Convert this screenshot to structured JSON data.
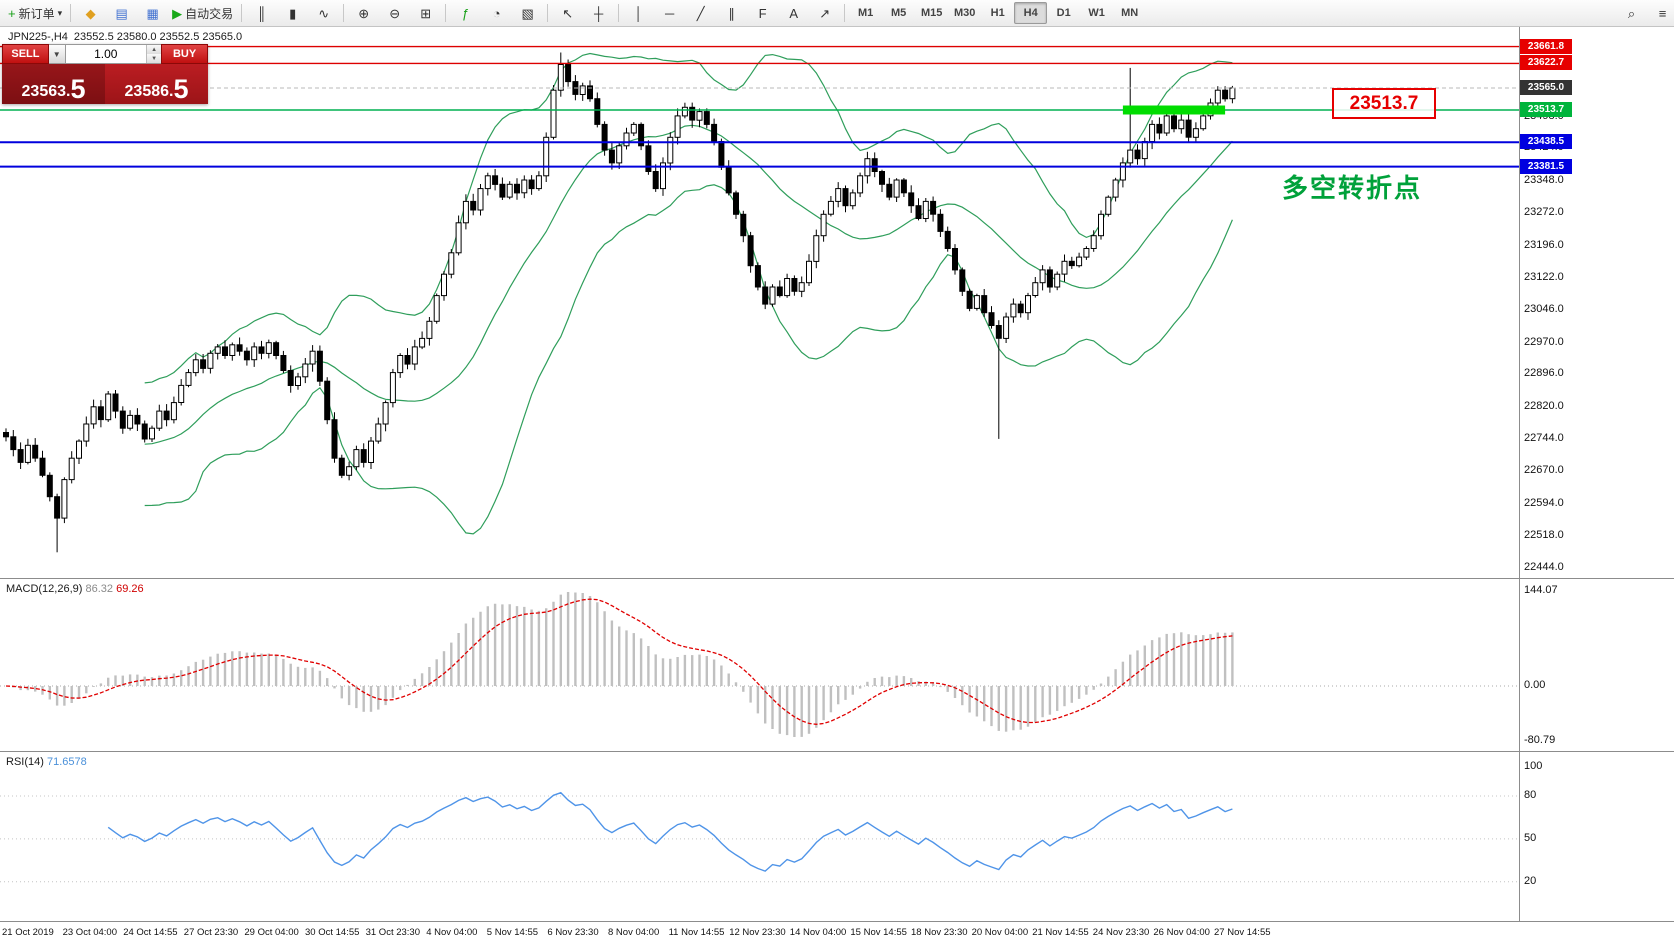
{
  "window": {
    "title": "JPN225-,H4"
  },
  "toolbar": {
    "groups": [
      {
        "items": [
          {
            "name": "new-order-button",
            "glyph": "+",
            "glyph_color": "#18a018",
            "label": "新订单",
            "caret": true
          }
        ]
      },
      {
        "items": [
          {
            "name": "favorites-icon",
            "glyph": "◆",
            "glyph_color": "#e0a020"
          },
          {
            "name": "market-depth-button",
            "glyph": "▤",
            "glyph_color": "#4070d0"
          },
          {
            "name": "data-window-button",
            "glyph": "▦",
            "glyph_color": "#4070d0"
          },
          {
            "name": "autotrading-button",
            "glyph": "▶",
            "glyph_color": "#18a818",
            "label": "自动交易"
          }
        ]
      },
      {
        "items": [
          {
            "name": "bars-chart-button",
            "glyph": "║"
          },
          {
            "name": "candles-chart-button",
            "glyph": "▮"
          },
          {
            "name": "line-chart-button",
            "glyph": "∿"
          }
        ]
      },
      {
        "items": [
          {
            "name": "zoom-in-button",
            "glyph": "⊕"
          },
          {
            "name": "zoom-out-button",
            "glyph": "⊖"
          },
          {
            "name": "tile-windows-button",
            "glyph": "⊞"
          }
        ]
      },
      {
        "items": [
          {
            "name": "indicators-button",
            "glyph": "ƒ",
            "glyph_color": "#18a018"
          },
          {
            "name": "periods-button",
            "glyph": "◔"
          },
          {
            "name": "templates-button",
            "glyph": "▧"
          }
        ]
      },
      {
        "items": [
          {
            "name": "cursor-button",
            "glyph": "↖"
          },
          {
            "name": "crosshair-button",
            "glyph": "┼"
          }
        ]
      },
      {
        "items": [
          {
            "name": "vertical-line-button",
            "glyph": "│"
          },
          {
            "name": "horizontal-line-button",
            "glyph": "─"
          },
          {
            "name": "trendline-button",
            "glyph": "╱"
          },
          {
            "name": "channel-button",
            "glyph": "∥"
          },
          {
            "name": "fibonacci-button",
            "glyph": "F"
          },
          {
            "name": "text-button",
            "glyph": "A"
          },
          {
            "name": "arrows-button",
            "glyph": "↗"
          }
        ]
      }
    ],
    "timeframes": {
      "items": [
        "M1",
        "M5",
        "M15",
        "M30",
        "H1",
        "H4",
        "D1",
        "W1",
        "MN"
      ],
      "active": "H4"
    },
    "right_items": [
      {
        "name": "search-button",
        "glyph": "⌕"
      },
      {
        "name": "properties-button",
        "glyph": "≡"
      }
    ]
  },
  "symbol_bar": {
    "symbol": "JPN225-,H4",
    "quote": "23552.5 23580.0 23552.5 23565.0"
  },
  "trade_panel": {
    "sell_label": "SELL",
    "buy_label": "BUY",
    "volume": "1.00",
    "sell_price": "23563.5",
    "buy_price": "23586.5"
  },
  "annotations": {
    "price_box": "23513.7",
    "note_text": "多空转折点",
    "note_color": "#00a13a"
  },
  "price_axis": {
    "labels": [
      "23650.0",
      "23498.0",
      "23424.0",
      "23348.0",
      "23272.0",
      "23196.0",
      "23122.0",
      "23046.0",
      "22970.0",
      "22896.0",
      "22820.0",
      "22744.0",
      "22670.0",
      "22594.0",
      "22518.0",
      "22444.0"
    ],
    "tags": [
      {
        "value": "23661.8",
        "color": "#e60000"
      },
      {
        "value": "23622.7",
        "color": "#e60000"
      },
      {
        "value": "23565.0",
        "color": "#333333"
      },
      {
        "value": "23513.7",
        "color": "#00b43c"
      },
      {
        "value": "23438.5",
        "color": "#0000e0"
      },
      {
        "value": "23381.5",
        "color": "#0000e0"
      }
    ]
  },
  "levels": [
    {
      "price": 23661.8,
      "color": "#dd0000",
      "width": 1.4,
      "name": "resistance-line-1"
    },
    {
      "price": 23622.7,
      "color": "#dd0000",
      "width": 1.4,
      "name": "resistance-line-2"
    },
    {
      "price": 23513.7,
      "color": "#00b050",
      "width": 1.4,
      "name": "pivot-line"
    },
    {
      "price": 23438.5,
      "color": "#0000dd",
      "width": 2,
      "name": "support-line-1"
    },
    {
      "price": 23381.5,
      "color": "#0000dd",
      "width": 2,
      "name": "support-line-2"
    }
  ],
  "bid_line": {
    "price": 23565.0,
    "color": "#b8b8b8"
  },
  "highlight_segment": {
    "price": 23513.7,
    "from_candle": 153,
    "to_candle": 167,
    "color": "#00dd00",
    "thickness": 9
  },
  "macd": {
    "label": "MACD(12,26,9)",
    "value_main": "86.32",
    "value_signal": "69.26",
    "axis": [
      "144.07",
      "0.00",
      "-80.79"
    ]
  },
  "rsi": {
    "label": "RSI(14)",
    "value": "71.6578",
    "axis": [
      "100",
      "80",
      "50",
      "20"
    ],
    "levels": [
      80,
      50,
      20
    ]
  },
  "time_axis": {
    "labels": [
      "21 Oct 2019",
      "23 Oct 04:00",
      "24 Oct 14:55",
      "27 Oct 23:30",
      "29 Oct 04:00",
      "30 Oct 14:55",
      "31 Oct 23:30",
      "4 Nov 04:00",
      "5 Nov 14:55",
      "6 Nov 23:30",
      "8 Nov 04:00",
      "11 Nov 14:55",
      "12 Nov 23:30",
      "14 Nov 04:00",
      "15 Nov 14:55",
      "18 Nov 23:30",
      "20 Nov 04:00",
      "21 Nov 14:55",
      "24 Nov 23:30",
      "26 Nov 04:00",
      "27 Nov 14:55"
    ]
  },
  "chart_data": {
    "type": "candlestick",
    "symbol": "JPN225-",
    "timeframe": "H4",
    "title": "JPN225-,H4",
    "ohlc_current": {
      "open": 23552.5,
      "high": 23580.0,
      "low": 23552.5,
      "close": 23565.0
    },
    "ylim": [
      22420,
      23710
    ],
    "visible_price_labels": [
      23661.8,
      22444.0
    ],
    "candles": {
      "first_open": 22760,
      "closes": [
        22750,
        22720,
        22690,
        22730,
        22700,
        22660,
        22610,
        22560,
        22650,
        22700,
        22740,
        22780,
        22820,
        22790,
        22850,
        22810,
        22770,
        22800,
        22780,
        22745,
        22770,
        22810,
        22790,
        22830,
        22870,
        22900,
        22930,
        22910,
        22945,
        22960,
        22940,
        22965,
        22950,
        22930,
        22960,
        22945,
        22970,
        22940,
        22905,
        22870,
        22890,
        22920,
        22950,
        22880,
        22790,
        22700,
        22660,
        22680,
        22720,
        22690,
        22740,
        22780,
        22830,
        22900,
        22940,
        22920,
        22960,
        22980,
        23020,
        23080,
        23130,
        23180,
        23250,
        23300,
        23280,
        23330,
        23360,
        23340,
        23310,
        23340,
        23320,
        23350,
        23330,
        23360,
        23450,
        23560,
        23620,
        23580,
        23550,
        23570,
        23540,
        23480,
        23420,
        23390,
        23430,
        23460,
        23480,
        23430,
        23370,
        23330,
        23390,
        23450,
        23500,
        23520,
        23490,
        23510,
        23480,
        23440,
        23380,
        23320,
        23270,
        23220,
        23150,
        23100,
        23060,
        23100,
        23080,
        23120,
        23090,
        23110,
        23160,
        23220,
        23270,
        23300,
        23330,
        23290,
        23320,
        23360,
        23400,
        23370,
        23340,
        23310,
        23350,
        23320,
        23290,
        23260,
        23300,
        23270,
        23230,
        23190,
        23140,
        23090,
        23050,
        23080,
        23040,
        23010,
        22980,
        23030,
        23060,
        23040,
        23080,
        23110,
        23140,
        23100,
        23130,
        23160,
        23150,
        23170,
        23190,
        23220,
        23270,
        23310,
        23350,
        23390,
        23420,
        23400,
        23440,
        23480,
        23460,
        23500,
        23470,
        23490,
        23450,
        23470,
        23500,
        23530,
        23560,
        23540,
        23565
      ],
      "wick_overrides": {
        "7": {
          "low": 22480
        },
        "76": {
          "high": 23648
        },
        "136": {
          "low": 22745
        },
        "154": {
          "high": 23612
        }
      }
    },
    "overlays": {
      "bollinger": {
        "period": 20,
        "deviation": 2,
        "color": "#2f9e5b"
      }
    },
    "indicators": [
      {
        "name": "MACD",
        "params": [
          12,
          26,
          9
        ],
        "values": [
          86.32,
          69.26
        ],
        "axis_range": [
          -80.79,
          144.07
        ]
      },
      {
        "name": "RSI",
        "params": [
          14
        ],
        "value": 71.6578,
        "axis_levels": [
          20,
          50,
          80,
          100
        ]
      }
    ]
  }
}
